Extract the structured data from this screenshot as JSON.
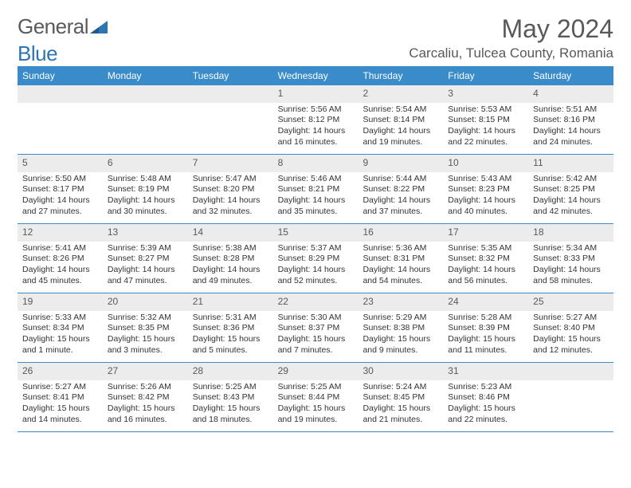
{
  "logo": {
    "part1": "General",
    "part2": "Blue"
  },
  "title": "May 2024",
  "location": "Carcaliu, Tulcea County, Romania",
  "dayHeaders": [
    "Sunday",
    "Monday",
    "Tuesday",
    "Wednesday",
    "Thursday",
    "Friday",
    "Saturday"
  ],
  "colors": {
    "headerBg": "#3a8bc9",
    "headerText": "#ffffff",
    "dayNumBg": "#ececec",
    "textGray": "#595959",
    "borderBlue": "#3a8bc9",
    "logoBlue": "#2e75b5"
  },
  "weeks": [
    [
      {
        "n": "",
        "lines": []
      },
      {
        "n": "",
        "lines": []
      },
      {
        "n": "",
        "lines": []
      },
      {
        "n": "1",
        "lines": [
          "Sunrise: 5:56 AM",
          "Sunset: 8:12 PM",
          "Daylight: 14 hours",
          "and 16 minutes."
        ]
      },
      {
        "n": "2",
        "lines": [
          "Sunrise: 5:54 AM",
          "Sunset: 8:14 PM",
          "Daylight: 14 hours",
          "and 19 minutes."
        ]
      },
      {
        "n": "3",
        "lines": [
          "Sunrise: 5:53 AM",
          "Sunset: 8:15 PM",
          "Daylight: 14 hours",
          "and 22 minutes."
        ]
      },
      {
        "n": "4",
        "lines": [
          "Sunrise: 5:51 AM",
          "Sunset: 8:16 PM",
          "Daylight: 14 hours",
          "and 24 minutes."
        ]
      }
    ],
    [
      {
        "n": "5",
        "lines": [
          "Sunrise: 5:50 AM",
          "Sunset: 8:17 PM",
          "Daylight: 14 hours",
          "and 27 minutes."
        ]
      },
      {
        "n": "6",
        "lines": [
          "Sunrise: 5:48 AM",
          "Sunset: 8:19 PM",
          "Daylight: 14 hours",
          "and 30 minutes."
        ]
      },
      {
        "n": "7",
        "lines": [
          "Sunrise: 5:47 AM",
          "Sunset: 8:20 PM",
          "Daylight: 14 hours",
          "and 32 minutes."
        ]
      },
      {
        "n": "8",
        "lines": [
          "Sunrise: 5:46 AM",
          "Sunset: 8:21 PM",
          "Daylight: 14 hours",
          "and 35 minutes."
        ]
      },
      {
        "n": "9",
        "lines": [
          "Sunrise: 5:44 AM",
          "Sunset: 8:22 PM",
          "Daylight: 14 hours",
          "and 37 minutes."
        ]
      },
      {
        "n": "10",
        "lines": [
          "Sunrise: 5:43 AM",
          "Sunset: 8:23 PM",
          "Daylight: 14 hours",
          "and 40 minutes."
        ]
      },
      {
        "n": "11",
        "lines": [
          "Sunrise: 5:42 AM",
          "Sunset: 8:25 PM",
          "Daylight: 14 hours",
          "and 42 minutes."
        ]
      }
    ],
    [
      {
        "n": "12",
        "lines": [
          "Sunrise: 5:41 AM",
          "Sunset: 8:26 PM",
          "Daylight: 14 hours",
          "and 45 minutes."
        ]
      },
      {
        "n": "13",
        "lines": [
          "Sunrise: 5:39 AM",
          "Sunset: 8:27 PM",
          "Daylight: 14 hours",
          "and 47 minutes."
        ]
      },
      {
        "n": "14",
        "lines": [
          "Sunrise: 5:38 AM",
          "Sunset: 8:28 PM",
          "Daylight: 14 hours",
          "and 49 minutes."
        ]
      },
      {
        "n": "15",
        "lines": [
          "Sunrise: 5:37 AM",
          "Sunset: 8:29 PM",
          "Daylight: 14 hours",
          "and 52 minutes."
        ]
      },
      {
        "n": "16",
        "lines": [
          "Sunrise: 5:36 AM",
          "Sunset: 8:31 PM",
          "Daylight: 14 hours",
          "and 54 minutes."
        ]
      },
      {
        "n": "17",
        "lines": [
          "Sunrise: 5:35 AM",
          "Sunset: 8:32 PM",
          "Daylight: 14 hours",
          "and 56 minutes."
        ]
      },
      {
        "n": "18",
        "lines": [
          "Sunrise: 5:34 AM",
          "Sunset: 8:33 PM",
          "Daylight: 14 hours",
          "and 58 minutes."
        ]
      }
    ],
    [
      {
        "n": "19",
        "lines": [
          "Sunrise: 5:33 AM",
          "Sunset: 8:34 PM",
          "Daylight: 15 hours",
          "and 1 minute."
        ]
      },
      {
        "n": "20",
        "lines": [
          "Sunrise: 5:32 AM",
          "Sunset: 8:35 PM",
          "Daylight: 15 hours",
          "and 3 minutes."
        ]
      },
      {
        "n": "21",
        "lines": [
          "Sunrise: 5:31 AM",
          "Sunset: 8:36 PM",
          "Daylight: 15 hours",
          "and 5 minutes."
        ]
      },
      {
        "n": "22",
        "lines": [
          "Sunrise: 5:30 AM",
          "Sunset: 8:37 PM",
          "Daylight: 15 hours",
          "and 7 minutes."
        ]
      },
      {
        "n": "23",
        "lines": [
          "Sunrise: 5:29 AM",
          "Sunset: 8:38 PM",
          "Daylight: 15 hours",
          "and 9 minutes."
        ]
      },
      {
        "n": "24",
        "lines": [
          "Sunrise: 5:28 AM",
          "Sunset: 8:39 PM",
          "Daylight: 15 hours",
          "and 11 minutes."
        ]
      },
      {
        "n": "25",
        "lines": [
          "Sunrise: 5:27 AM",
          "Sunset: 8:40 PM",
          "Daylight: 15 hours",
          "and 12 minutes."
        ]
      }
    ],
    [
      {
        "n": "26",
        "lines": [
          "Sunrise: 5:27 AM",
          "Sunset: 8:41 PM",
          "Daylight: 15 hours",
          "and 14 minutes."
        ]
      },
      {
        "n": "27",
        "lines": [
          "Sunrise: 5:26 AM",
          "Sunset: 8:42 PM",
          "Daylight: 15 hours",
          "and 16 minutes."
        ]
      },
      {
        "n": "28",
        "lines": [
          "Sunrise: 5:25 AM",
          "Sunset: 8:43 PM",
          "Daylight: 15 hours",
          "and 18 minutes."
        ]
      },
      {
        "n": "29",
        "lines": [
          "Sunrise: 5:25 AM",
          "Sunset: 8:44 PM",
          "Daylight: 15 hours",
          "and 19 minutes."
        ]
      },
      {
        "n": "30",
        "lines": [
          "Sunrise: 5:24 AM",
          "Sunset: 8:45 PM",
          "Daylight: 15 hours",
          "and 21 minutes."
        ]
      },
      {
        "n": "31",
        "lines": [
          "Sunrise: 5:23 AM",
          "Sunset: 8:46 PM",
          "Daylight: 15 hours",
          "and 22 minutes."
        ]
      },
      {
        "n": "",
        "lines": []
      }
    ]
  ]
}
